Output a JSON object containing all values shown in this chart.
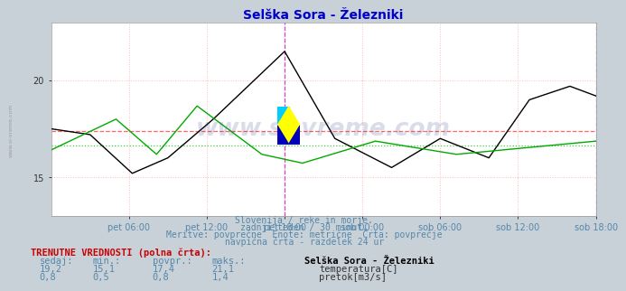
{
  "title": "Selška Sora - Železniki",
  "title_color": "#0000cc",
  "bg_color": "#c8d0d8",
  "plot_bg_color": "#ffffff",
  "grid_color": "#ffbbbb",
  "xlabel_color": "#5588aa",
  "text_color": "#5588aa",
  "watermark": "www.si-vreme.com",
  "watermark_color": "#334488",
  "watermark_alpha": 0.18,
  "xlim": [
    0,
    336
  ],
  "ylim_temp": [
    13,
    23
  ],
  "ylim_flow": [
    0,
    2.2
  ],
  "yticks_temp": [
    15,
    20
  ],
  "ytick_label_temp": [
    "15",
    "20"
  ],
  "xtick_positions": [
    48,
    96,
    144,
    192,
    240,
    288,
    336
  ],
  "xtick_labels": [
    "pet 06:00",
    "pet 12:00",
    "pet 18:00",
    "sob 00:00",
    "sob 06:00",
    "sob 12:00",
    "sob 18:00"
  ],
  "temp_avg": 17.4,
  "flow_avg": 0.8,
  "temp_color": "#000000",
  "flow_color": "#00aa00",
  "avg_line_color_temp": "#ff6666",
  "avg_line_color_flow": "#44cc44",
  "vline_color": "#cc44cc",
  "vline_pos": 144,
  "vline_end_pos": 336,
  "subtitle_lines": [
    "Slovenija / reke in morje.",
    "zadnji teden / 30 minut.",
    "Meritve: povprečne  Enote: metrične  Črta: povprečje",
    "navpična črta - razdelek 24 ur"
  ],
  "label_header": "TRENUTNE VREDNOSTI (polna črta):",
  "col_headers": [
    "sedaj:",
    "min.:",
    "povpr.:",
    "maks.:"
  ],
  "temp_values": [
    "19,2",
    "15,1",
    "17,4",
    "21,1"
  ],
  "flow_values": [
    "0,8",
    "0,5",
    "0,8",
    "1,4"
  ],
  "legend_title": "Selška Sora - Železniki",
  "legend_temp": "temperatura[C]",
  "legend_flow": "pretok[m3/s]",
  "legend_temp_color": "#cc0000",
  "legend_flow_color": "#00aa00"
}
